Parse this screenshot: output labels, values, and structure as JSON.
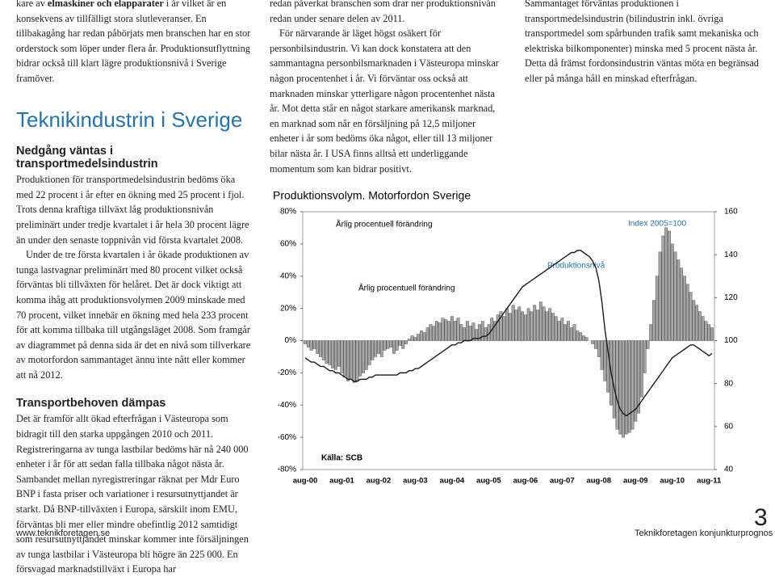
{
  "left": {
    "intro_start": "kare av ",
    "intro_bold": "elmaskiner och elapparater",
    "intro_rest": " i år vilket är en konsekvens av tillfälligt stora slutleveranser. En tillbakagång har redan påbörjats men branschen har en stor orderstock som löper under flera år. Produktionsutflyttning bidrar också till klart lägre produktionsnivå i Sverige framöver.",
    "heading": "Teknikindustrin i Sverige",
    "sections": [
      {
        "title": "Nedgång väntas i transportmedelsindustrin",
        "paragraphs": [
          "Produktionen för transportmedelsindustrin bedöms öka med 22 procent i år efter en ökning med 25 procent i fjol. Trots denna kraftiga tillväxt låg produktionsnivån preliminärt under tredje kvartalet i år hela 30 procent lägre än under den senaste toppnivån vid första kvartalet 2008.",
          "Under de tre första kvartalen i år ökade produktionen av tunga lastvagnar preliminärt med 80 procent vilket också förväntas bli tillväxten för helåret. Det är dock viktigt att komma ihåg att produktionsvolymen 2009 minskade med 70 procent, vilket innebär en ökning med hela 233 procent för att komma tillbaka till utgångsläget 2008. Som framgår av diagrammet på denna sida är det en nivå som tillverkare av motorfordon sammantaget ännu inte nått eller kommer att nå 2012."
        ]
      },
      {
        "title": "Transportbehoven dämpas",
        "paragraphs": [
          "Det är framför allt ökad efterfrågan i Västeuropa som bidragit till den starka uppgången 2010 och 2011. Registreringarna av tunga lastbilar bedöms här nå 240 000 enheter i år för att sedan falla tillbaka något nästa år. Sambandet mellan nyregistreringar räknat per Mdr Euro BNP i fasta priser och variationer i resursutnyttjandet är starkt. Då BNP-tillväxten i Europa, särskilt inom EMU, förväntas bli mer eller mindre obefintlig 2012 samtidigt som resursutnyttjandet minskar kommer inte försäljningen av tunga lastbilar i Västeuropa bli högre än 225 000. En försvagad marknadstillväxt i Europa har"
        ]
      }
    ]
  },
  "middle": {
    "paragraphs": [
      "redan påverkat branschen som drar ner produktionsnivån redan under senare delen av 2011.",
      "För närvarande är läget högst osäkert för personbilsindustrin. Vi kan dock konstatera att den sammantagna personbilsmarknaden i Västeuropa minskar någon procentenhet i år. Vi förväntar oss också att marknaden minskar ytterligare någon procentenhet nästa år. Mot detta står en något starkare amerikansk marknad, en marknad som når en försäljning på 12,5 miljoner enheter i år som bedöms öka något, eller till 13 miljoner bilar nästa år. I USA finns alltså ett underliggande momentum som kan bidrar positivt."
    ]
  },
  "right": {
    "paragraphs": [
      "Sammantaget förväntas produktionen i transportmedelsindustrin (bilindustrin inkl. övriga transportmedel som spårbunden trafik samt mekaniska och elektriska bilkomponenter) minska med 5 procent nästa år. Detta då främst fordonsindustrin väntas möta en begränsad eller på många håll en minskad efterfrågan."
    ]
  },
  "footer": {
    "url": "www.teknikforetagen.se",
    "publication": "Teknikforetagen konjunkturprognos",
    "page": 3
  },
  "chart_data": {
    "type": "bar",
    "title": "Produktionsvolym. Motorfordon Sverige",
    "index_note": "Index 2005=100",
    "source": "Källa: SCB",
    "categories": [
      "aug-00",
      null,
      null,
      null,
      null,
      null,
      null,
      null,
      null,
      null,
      null,
      null,
      "aug-01",
      null,
      null,
      null,
      null,
      null,
      null,
      null,
      null,
      null,
      null,
      null,
      "aug-02",
      null,
      null,
      null,
      null,
      null,
      null,
      null,
      null,
      null,
      null,
      null,
      "aug-03",
      null,
      null,
      null,
      null,
      null,
      null,
      null,
      null,
      null,
      null,
      null,
      "aug-04",
      null,
      null,
      null,
      null,
      null,
      null,
      null,
      null,
      null,
      null,
      null,
      "aug-05",
      null,
      null,
      null,
      null,
      null,
      null,
      null,
      null,
      null,
      null,
      null,
      "aug-06",
      null,
      null,
      null,
      null,
      null,
      null,
      null,
      null,
      null,
      null,
      null,
      "aug-07",
      null,
      null,
      null,
      null,
      null,
      null,
      null,
      null,
      null,
      null,
      null,
      "aug-08",
      null,
      null,
      null,
      null,
      null,
      null,
      null,
      null,
      null,
      null,
      null,
      "aug-09",
      null,
      null,
      null,
      null,
      null,
      null,
      null,
      null,
      null,
      null,
      null,
      "aug-10",
      null,
      null,
      null,
      null,
      null,
      null,
      null,
      null,
      null,
      null,
      null,
      "aug-11",
      null
    ],
    "series": [
      {
        "name": "Årlig procentuell förändring",
        "type": "bar",
        "color": "#a6a6a6",
        "axis": "y",
        "values": [
          -2,
          -4,
          -6,
          -5,
          -8,
          -10,
          -12,
          -14,
          -15,
          -17,
          -18,
          -16,
          -20,
          -22,
          -25,
          -24,
          -26,
          -25,
          -22,
          -20,
          -18,
          -15,
          -12,
          -10,
          -8,
          -10,
          -6,
          -5,
          -4,
          -8,
          -6,
          -3,
          -5,
          -2,
          1,
          3,
          2,
          4,
          6,
          5,
          8,
          10,
          9,
          12,
          11,
          14,
          13,
          12,
          15,
          12,
          14,
          10,
          8,
          12,
          9,
          11,
          7,
          10,
          12,
          8,
          10,
          14,
          12,
          16,
          18,
          15,
          20,
          17,
          22,
          19,
          21,
          18,
          16,
          20,
          18,
          22,
          19,
          24,
          21,
          18,
          20,
          17,
          15,
          12,
          14,
          10,
          12,
          8,
          10,
          6,
          5,
          3,
          2,
          0,
          -2,
          -5,
          -10,
          -18,
          -25,
          -32,
          -40,
          -48,
          -55,
          -58,
          -60,
          -58,
          -57,
          -55,
          -50,
          -45,
          -35,
          -20,
          -5,
          10,
          25,
          40,
          55,
          65,
          70,
          68,
          60,
          55,
          50,
          45,
          40,
          35,
          30,
          25,
          22,
          18,
          15,
          12,
          10,
          8
        ]
      },
      {
        "name": "Produktionsnivå",
        "type": "line",
        "color": "#1a1a1a",
        "axis": "y2",
        "values": [
          92,
          91,
          90,
          90,
          89,
          88,
          88,
          87,
          86,
          86,
          85,
          85,
          84,
          83,
          82,
          82,
          81,
          81,
          82,
          82,
          82,
          83,
          83,
          84,
          84,
          84,
          84,
          84,
          84,
          84,
          84,
          85,
          85,
          85,
          86,
          86,
          87,
          87,
          88,
          89,
          90,
          91,
          92,
          93,
          94,
          95,
          96,
          97,
          98,
          98,
          99,
          99,
          100,
          100,
          100,
          101,
          101,
          101,
          102,
          102,
          103,
          105,
          107,
          109,
          111,
          113,
          115,
          117,
          119,
          121,
          123,
          125,
          126,
          127,
          128,
          129,
          130,
          131,
          132,
          133,
          134,
          135,
          136,
          137,
          138,
          139,
          140,
          141,
          141,
          142,
          142,
          141,
          140,
          139,
          137,
          134,
          128,
          118,
          105,
          95,
          85,
          78,
          72,
          68,
          66,
          65,
          66,
          67,
          68,
          70,
          72,
          74,
          76,
          78,
          80,
          82,
          84,
          86,
          88,
          90,
          92,
          93,
          94,
          95,
          96,
          97,
          98,
          98,
          97,
          96,
          95,
          94,
          93,
          94
        ]
      }
    ],
    "ylim": [
      -80,
      80
    ],
    "yticks": [
      {
        "value": -80,
        "label": "-80%"
      },
      {
        "value": -60,
        "label": "-60%"
      },
      {
        "value": -40,
        "label": "-40%"
      },
      {
        "value": -20,
        "label": "-20%"
      },
      {
        "value": 0,
        "label": "0%"
      },
      {
        "value": 20,
        "label": "20%"
      },
      {
        "value": 40,
        "label": "40%"
      },
      {
        "value": 60,
        "label": "60%"
      },
      {
        "value": 80,
        "label": "80%"
      }
    ],
    "y2lim": [
      40,
      160
    ],
    "y2ticks": [
      40,
      60,
      80,
      100,
      120,
      140,
      160
    ],
    "grid": false
  }
}
